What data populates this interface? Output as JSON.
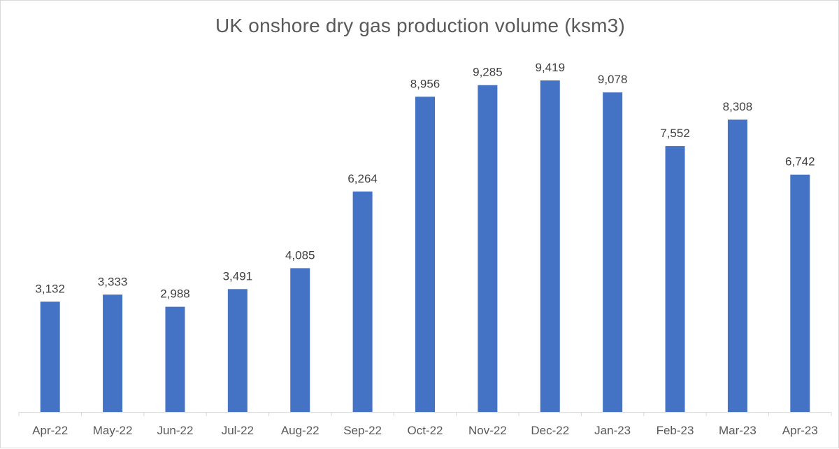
{
  "chart_data": {
    "type": "bar",
    "title": "UK onshore dry gas production volume (ksm3)",
    "xlabel": "",
    "ylabel": "",
    "categories": [
      "Apr-22",
      "May-22",
      "Jun-22",
      "Jul-22",
      "Aug-22",
      "Sep-22",
      "Oct-22",
      "Nov-22",
      "Dec-22",
      "Jan-23",
      "Feb-23",
      "Mar-23",
      "Apr-23"
    ],
    "values": [
      3132,
      3333,
      2988,
      3491,
      4085,
      6264,
      8956,
      9285,
      9419,
      9078,
      7552,
      8308,
      6742
    ],
    "data_labels": [
      "3,132",
      "3,333",
      "2,988",
      "3,491",
      "4,085",
      "6,264",
      "8,956",
      "9,285",
      "9,419",
      "9,078",
      "7,552",
      "8,308",
      "6,742"
    ],
    "ylim": [
      0,
      10000
    ],
    "grid": false,
    "legend": "none",
    "bar_color": "#4472c4"
  }
}
